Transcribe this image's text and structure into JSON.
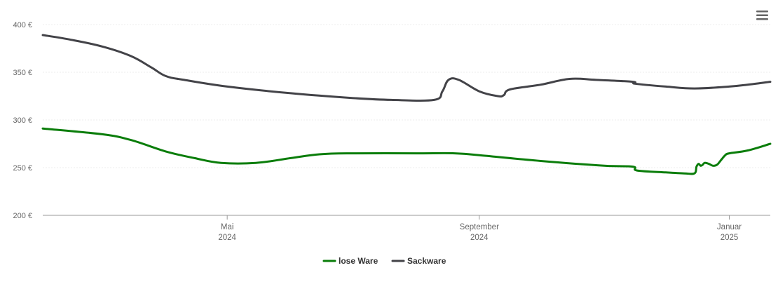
{
  "chart_data": {
    "type": "line",
    "title": "",
    "xlabel": "",
    "ylabel": "",
    "ylim": [
      200,
      400
    ],
    "y_ticks": [
      {
        "value": 200,
        "label": "200 €"
      },
      {
        "value": 250,
        "label": "250 €"
      },
      {
        "value": 300,
        "label": "300 €"
      },
      {
        "value": 350,
        "label": "350 €"
      },
      {
        "value": 400,
        "label": "400 €"
      }
    ],
    "x_range": [
      "2024-02-01",
      "2025-01-21"
    ],
    "x_ticks": [
      {
        "date": "2024-05-01",
        "line1": "Mai",
        "line2": "2024"
      },
      {
        "date": "2024-09-01",
        "line1": "September",
        "line2": "2024"
      },
      {
        "date": "2025-01-01",
        "line1": "Januar",
        "line2": "2025"
      }
    ],
    "grid": true,
    "legend_position": "bottom",
    "series": [
      {
        "name": "lose Ware",
        "color": "#0a7d0a",
        "points": [
          [
            "2024-02-01",
            291
          ],
          [
            "2024-03-01",
            285
          ],
          [
            "2024-03-15",
            279
          ],
          [
            "2024-04-01",
            267
          ],
          [
            "2024-04-15",
            260
          ],
          [
            "2024-04-28",
            255
          ],
          [
            "2024-05-15",
            255
          ],
          [
            "2024-06-01",
            260
          ],
          [
            "2024-06-15",
            264
          ],
          [
            "2024-07-01",
            265
          ],
          [
            "2024-08-01",
            265
          ],
          [
            "2024-08-20",
            265
          ],
          [
            "2024-09-01",
            263
          ],
          [
            "2024-10-01",
            257
          ],
          [
            "2024-11-01",
            252
          ],
          [
            "2024-11-15",
            251
          ],
          [
            "2024-11-17",
            247
          ],
          [
            "2024-12-01",
            245
          ],
          [
            "2024-12-10",
            244
          ],
          [
            "2024-12-15",
            244
          ],
          [
            "2024-12-16",
            251
          ],
          [
            "2024-12-17",
            254
          ],
          [
            "2024-12-18",
            252
          ],
          [
            "2024-12-19",
            253
          ],
          [
            "2024-12-20",
            255
          ],
          [
            "2024-12-22",
            254
          ],
          [
            "2024-12-24",
            252
          ],
          [
            "2024-12-26",
            253
          ],
          [
            "2024-12-28",
            258
          ],
          [
            "2024-12-30",
            263
          ],
          [
            "2025-01-01",
            265
          ],
          [
            "2025-01-10",
            268
          ],
          [
            "2025-01-21",
            275
          ]
        ]
      },
      {
        "name": "Sackware",
        "color": "#434348",
        "points": [
          [
            "2024-02-01",
            389
          ],
          [
            "2024-02-15",
            384
          ],
          [
            "2024-03-01",
            377
          ],
          [
            "2024-03-15",
            367
          ],
          [
            "2024-03-25",
            355
          ],
          [
            "2024-04-01",
            346
          ],
          [
            "2024-04-10",
            342
          ],
          [
            "2024-05-01",
            335
          ],
          [
            "2024-06-01",
            328
          ],
          [
            "2024-07-01",
            323
          ],
          [
            "2024-07-20",
            321
          ],
          [
            "2024-08-10",
            321
          ],
          [
            "2024-08-14",
            330
          ],
          [
            "2024-08-17",
            342
          ],
          [
            "2024-08-22",
            342
          ],
          [
            "2024-09-01",
            330
          ],
          [
            "2024-09-10",
            325
          ],
          [
            "2024-09-13",
            326
          ],
          [
            "2024-09-16",
            332
          ],
          [
            "2024-10-01",
            337
          ],
          [
            "2024-10-15",
            343
          ],
          [
            "2024-10-28",
            342
          ],
          [
            "2024-11-15",
            340
          ],
          [
            "2024-11-16",
            338
          ],
          [
            "2024-12-01",
            335
          ],
          [
            "2024-12-15",
            333
          ],
          [
            "2025-01-01",
            335
          ],
          [
            "2025-01-10",
            337
          ],
          [
            "2025-01-21",
            340
          ]
        ]
      }
    ]
  },
  "menu": {
    "icon": "hamburger-menu-icon"
  }
}
